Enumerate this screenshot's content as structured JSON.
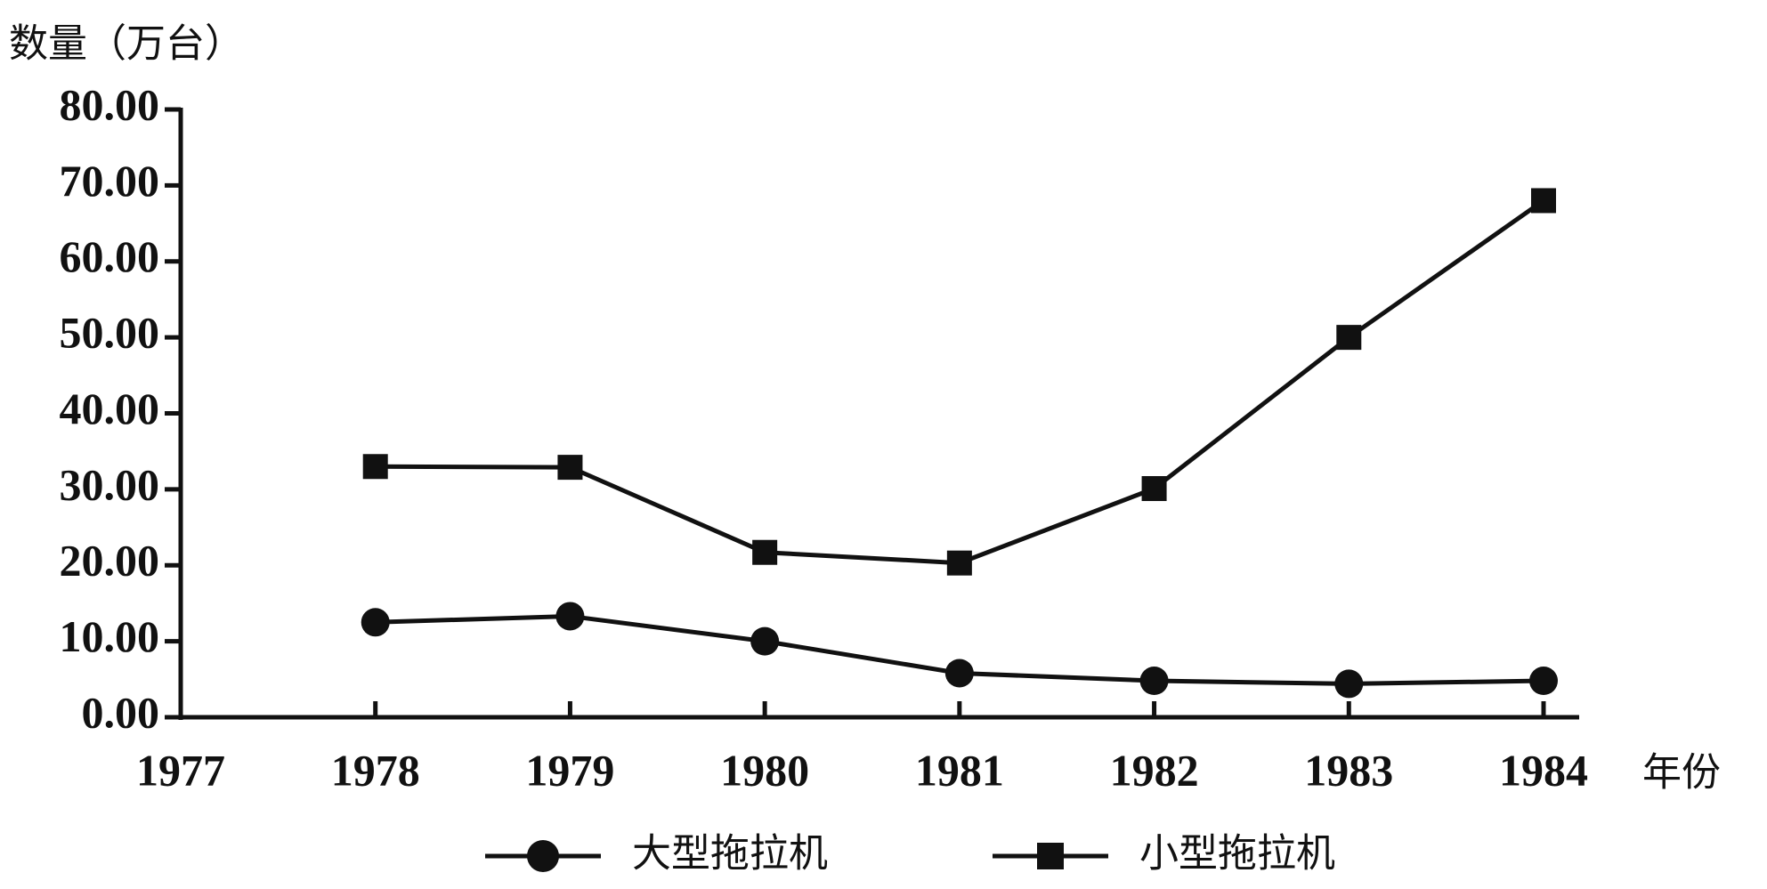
{
  "chart_data": {
    "type": "line",
    "y_label": "数量（万台）",
    "x_label": "年份",
    "x": [
      1978,
      1979,
      1980,
      1981,
      1982,
      1983,
      1984
    ],
    "xlim": [
      1977,
      1984
    ],
    "xticks": [
      1977,
      1978,
      1979,
      1980,
      1981,
      1982,
      1983,
      1984
    ],
    "ylim": [
      0,
      80
    ],
    "yticks": [
      {
        "value": 0,
        "label": "0.00"
      },
      {
        "value": 10,
        "label": "10.00"
      },
      {
        "value": 20,
        "label": "20.00"
      },
      {
        "value": 30,
        "label": "30.00"
      },
      {
        "value": 40,
        "label": "40.00"
      },
      {
        "value": 50,
        "label": "50.00"
      },
      {
        "value": 60,
        "label": "60.00"
      },
      {
        "value": 70,
        "label": "70.00"
      },
      {
        "value": 80,
        "label": "80.00"
      }
    ],
    "series": [
      {
        "name": "大型拖拉机",
        "color": "#111111",
        "marker": "circle",
        "values": [
          12.5,
          13.3,
          10.0,
          5.8,
          4.8,
          4.4,
          4.8
        ]
      },
      {
        "name": "小型拖拉机",
        "color": "#111111",
        "marker": "square",
        "values": [
          33.0,
          32.9,
          21.7,
          20.3,
          30.1,
          50.0,
          68.0
        ]
      }
    ]
  }
}
